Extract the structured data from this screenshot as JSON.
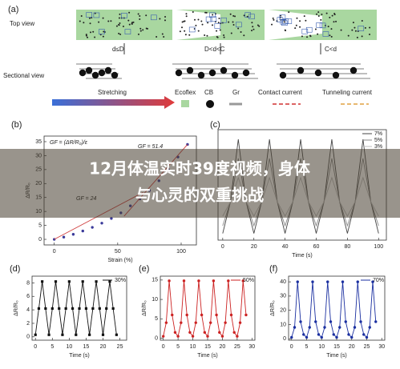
{
  "figure": {
    "panel_a": {
      "label": "(a)",
      "top_view": "Top view",
      "sectional_view": "Sectional view",
      "states": [
        "d≤D",
        "D<d<C",
        "C<d"
      ],
      "stretching": "Stretching",
      "legend": [
        "Ecoflex",
        "CB",
        "Gr",
        "Contact current",
        "Tunneling current"
      ]
    }
  },
  "overlay": {
    "title_lines": [
      "12月体温实时39度视频，身体",
      "与心灵的双重挑战"
    ]
  },
  "chart_data": [
    {
      "type": "scatter",
      "label": "(b)",
      "xlabel": "Strain (%)",
      "ylabel": "ΔR/R₀",
      "xlim": [
        -8,
        112
      ],
      "ylim": [
        -2,
        37
      ],
      "xticks": [
        0,
        50,
        100
      ],
      "yticks": [
        0,
        5,
        10,
        15,
        20,
        25,
        30,
        35
      ],
      "annotations": [
        "GF = (ΔR/R₀)/ε",
        "GF = 51.4",
        "GF = 24"
      ],
      "series": [
        {
          "color": "#3a3a9a",
          "style": "markers",
          "x": [
            0,
            7.5,
            15,
            22.5,
            30,
            37.5,
            45,
            52.5,
            60,
            67.5,
            75,
            82.5,
            90,
            97.5,
            105
          ],
          "values": [
            0,
            0.8,
            1.8,
            3,
            4.3,
            5.8,
            7.5,
            9.5,
            12,
            14.5,
            17.5,
            21,
            25,
            29.5,
            34
          ]
        },
        {
          "color": "#d04040",
          "style": "line",
          "x": [
            0,
            70
          ],
          "values": [
            0,
            16.8
          ]
        },
        {
          "color": "#d04040",
          "style": "line",
          "x": [
            55,
            105
          ],
          "values": [
            8.3,
            34
          ]
        }
      ]
    },
    {
      "type": "line",
      "label": "(c)",
      "xlabel": "Time (s)",
      "xlim": [
        -3,
        105
      ],
      "ylim": [
        -0.05,
        1.1
      ],
      "xticks": [
        0,
        20,
        40,
        60,
        80,
        100
      ],
      "legend": "upper right",
      "series": [
        {
          "name": "7%",
          "color": "#444444",
          "style": "line",
          "x": [
            0,
            5,
            10,
            15,
            20,
            25,
            30,
            35,
            40,
            45,
            50,
            55,
            60,
            65,
            70,
            75,
            80,
            85,
            90,
            95,
            100
          ],
          "values": [
            0.02,
            0.35,
            1.0,
            0.35,
            0.02,
            0.35,
            1.0,
            0.35,
            0.02,
            0.35,
            1.0,
            0.35,
            0.02,
            0.35,
            1.0,
            0.35,
            0.02,
            0.35,
            1.0,
            0.35,
            0.02
          ]
        },
        {
          "name": "5%",
          "color": "#888888",
          "style": "line",
          "x": [
            0,
            5,
            10,
            15,
            20,
            25,
            30,
            35,
            40,
            45,
            50,
            55,
            60,
            65,
            70,
            75,
            80,
            85,
            90,
            95,
            100
          ],
          "values": [
            0.1,
            0.35,
            0.8,
            0.35,
            0.1,
            0.35,
            0.8,
            0.35,
            0.1,
            0.35,
            0.8,
            0.35,
            0.1,
            0.35,
            0.8,
            0.35,
            0.1,
            0.35,
            0.8,
            0.35,
            0.1
          ]
        },
        {
          "name": "3%",
          "color": "#bbbbbb",
          "style": "line",
          "x": [
            0,
            5,
            10,
            15,
            20,
            25,
            30,
            35,
            40,
            45,
            50,
            55,
            60,
            65,
            70,
            75,
            80,
            85,
            90,
            95,
            100
          ],
          "values": [
            0.2,
            0.35,
            0.6,
            0.35,
            0.2,
            0.35,
            0.6,
            0.35,
            0.2,
            0.35,
            0.6,
            0.35,
            0.2,
            0.35,
            0.6,
            0.35,
            0.2,
            0.35,
            0.6,
            0.35,
            0.2
          ]
        }
      ]
    },
    {
      "type": "line",
      "label": "(d)",
      "xlabel": "Time (s)",
      "ylabel": "ΔR/R₀",
      "xlim": [
        -1,
        27
      ],
      "ylim": [
        -0.5,
        9
      ],
      "xticks": [
        0,
        5,
        10,
        15,
        20,
        25
      ],
      "yticks": [
        0,
        2,
        4,
        6,
        8
      ],
      "legend": "upper right",
      "series": [
        {
          "name": "30%",
          "color": "#111111",
          "style": "line",
          "marker": "square",
          "x": [
            0,
            1,
            2,
            3,
            4,
            5,
            6,
            7,
            8,
            9,
            10,
            11,
            12,
            13,
            14,
            15,
            16,
            17,
            18,
            19,
            20,
            21,
            22,
            23,
            24
          ],
          "values": [
            0.3,
            4.2,
            8.2,
            4.2,
            0.3,
            4.2,
            8.2,
            4.2,
            0.3,
            4.2,
            8.2,
            4.2,
            0.3,
            4.2,
            8.2,
            4.2,
            0.3,
            4.2,
            8.2,
            4.2,
            0.3,
            4.2,
            8.2,
            4.2,
            0.3
          ]
        }
      ]
    },
    {
      "type": "line",
      "label": "(e)",
      "xlabel": "Time (s)",
      "ylabel": "ΔR/R₀",
      "xlim": [
        -1,
        31
      ],
      "ylim": [
        -0.5,
        16
      ],
      "xticks": [
        0,
        5,
        10,
        15,
        20,
        25,
        30
      ],
      "yticks": [
        0,
        5,
        10,
        15
      ],
      "legend": "upper right",
      "series": [
        {
          "name": "50%",
          "color": "#cc2222",
          "style": "line",
          "marker": "circle",
          "x": [
            0,
            1,
            2,
            3,
            4,
            5,
            6,
            7,
            8,
            9,
            10,
            11,
            12,
            13,
            14,
            15,
            16,
            17,
            18,
            19,
            20,
            21,
            22,
            23,
            24,
            25,
            26,
            27,
            28
          ],
          "values": [
            0.5,
            4,
            14.8,
            6,
            1.5,
            0.5,
            4,
            14.8,
            6,
            1.5,
            0.5,
            4,
            14.8,
            6,
            1.5,
            0.5,
            4,
            14.8,
            6,
            1.5,
            0.5,
            4,
            14.8,
            6,
            1.5,
            0.5,
            4,
            14.8,
            6
          ]
        }
      ]
    },
    {
      "type": "line",
      "label": "(f)",
      "xlabel": "Time (s)",
      "ylabel": "ΔR/R₀",
      "xlim": [
        -1,
        31
      ],
      "ylim": [
        -1,
        44
      ],
      "xticks": [
        0,
        5,
        10,
        15,
        20,
        25,
        30
      ],
      "yticks": [
        0,
        10,
        20,
        30,
        40
      ],
      "legend": "upper right",
      "series": [
        {
          "name": "70%",
          "color": "#1a2fa0",
          "style": "line",
          "marker": "circle",
          "x": [
            0,
            1,
            2,
            3,
            4,
            5,
            6,
            7,
            8,
            9,
            10,
            11,
            12,
            13,
            14,
            15,
            16,
            17,
            18,
            19,
            20,
            21,
            22,
            23,
            24,
            25,
            26,
            27,
            28
          ],
          "values": [
            1,
            8,
            40,
            12,
            3,
            1,
            8,
            40,
            12,
            3,
            1,
            8,
            40,
            12,
            3,
            1,
            8,
            40,
            12,
            3,
            1,
            8,
            40,
            12,
            3,
            1,
            8,
            40,
            12
          ]
        }
      ]
    }
  ]
}
